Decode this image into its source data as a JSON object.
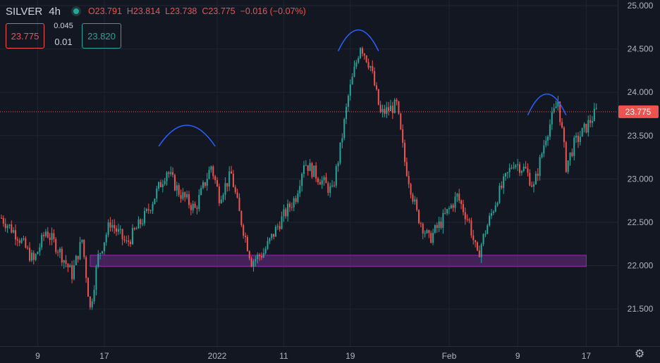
{
  "header": {
    "symbol": "SILVER",
    "timeframe": "4h",
    "open": "O23.791",
    "high": "H23.814",
    "low": "L23.738",
    "close": "C23.775",
    "change": "−0.016 (−0.07%)"
  },
  "trade": {
    "sell_price": "23.775",
    "spread": "0.045",
    "quantity": "0.01",
    "buy_price": "23.820"
  },
  "colors": {
    "background": "#131722",
    "up": "#26a69a",
    "down": "#ef5350",
    "grid": "#1f2433",
    "axis_text": "#b2b5be",
    "support_zone": "#6a2c86",
    "arcs": "#2962ff"
  },
  "chart_data": {
    "type": "candlestick",
    "title": "",
    "xlabel": "",
    "ylabel": "",
    "ylim": [
      21.0,
      25.0
    ],
    "y_ticks": [
      "25.000",
      "24.500",
      "24.000",
      "23.500",
      "23.000",
      "22.500",
      "22.000",
      "21.500"
    ],
    "x_ticks": [
      "9",
      "17",
      "2022",
      "11",
      "19",
      "Feb",
      "9",
      "17"
    ],
    "last_price": "23.775",
    "grid": true,
    "anchors": [
      {
        "i": 0,
        "v": 22.55
      },
      {
        "i": 8,
        "v": 22.35
      },
      {
        "i": 16,
        "v": 22.05
      },
      {
        "i": 22,
        "v": 22.4
      },
      {
        "i": 28,
        "v": 22.2
      },
      {
        "i": 35,
        "v": 21.9
      },
      {
        "i": 40,
        "v": 22.3
      },
      {
        "i": 44,
        "v": 21.5
      },
      {
        "i": 48,
        "v": 22.1
      },
      {
        "i": 54,
        "v": 22.5
      },
      {
        "i": 62,
        "v": 22.25
      },
      {
        "i": 72,
        "v": 22.6
      },
      {
        "i": 82,
        "v": 23.1
      },
      {
        "i": 88,
        "v": 22.85
      },
      {
        "i": 96,
        "v": 22.65
      },
      {
        "i": 104,
        "v": 23.15
      },
      {
        "i": 108,
        "v": 22.8
      },
      {
        "i": 114,
        "v": 23.05
      },
      {
        "i": 118,
        "v": 22.6
      },
      {
        "i": 124,
        "v": 22.05
      },
      {
        "i": 130,
        "v": 22.15
      },
      {
        "i": 138,
        "v": 22.5
      },
      {
        "i": 146,
        "v": 22.8
      },
      {
        "i": 150,
        "v": 23.2
      },
      {
        "i": 156,
        "v": 23.05
      },
      {
        "i": 164,
        "v": 22.85
      },
      {
        "i": 168,
        "v": 23.35
      },
      {
        "i": 172,
        "v": 23.95
      },
      {
        "i": 178,
        "v": 24.55
      },
      {
        "i": 183,
        "v": 24.3
      },
      {
        "i": 188,
        "v": 23.75
      },
      {
        "i": 196,
        "v": 23.85
      },
      {
        "i": 200,
        "v": 23.2
      },
      {
        "i": 206,
        "v": 22.6
      },
      {
        "i": 212,
        "v": 22.3
      },
      {
        "i": 218,
        "v": 22.5
      },
      {
        "i": 226,
        "v": 22.8
      },
      {
        "i": 232,
        "v": 22.5
      },
      {
        "i": 236,
        "v": 22.1
      },
      {
        "i": 240,
        "v": 22.4
      },
      {
        "i": 246,
        "v": 22.8
      },
      {
        "i": 254,
        "v": 23.2
      },
      {
        "i": 260,
        "v": 23.1
      },
      {
        "i": 264,
        "v": 22.9
      },
      {
        "i": 270,
        "v": 23.5
      },
      {
        "i": 276,
        "v": 23.9
      },
      {
        "i": 278,
        "v": 23.55
      },
      {
        "i": 280,
        "v": 23.15
      },
      {
        "i": 284,
        "v": 23.4
      },
      {
        "i": 290,
        "v": 23.6
      },
      {
        "i": 295,
        "v": 23.78
      }
    ],
    "annotations": [
      {
        "type": "zone",
        "from": 21.99,
        "to": 22.12,
        "x_start": 44,
        "x_end": 290
      },
      {
        "type": "arc",
        "x_start": 78,
        "x_end": 106,
        "peak": 23.62
      },
      {
        "type": "arc",
        "x_start": 167,
        "x_end": 187,
        "peak": 24.72
      },
      {
        "type": "arc",
        "x_start": 261,
        "x_end": 280,
        "peak": 23.98
      }
    ]
  }
}
